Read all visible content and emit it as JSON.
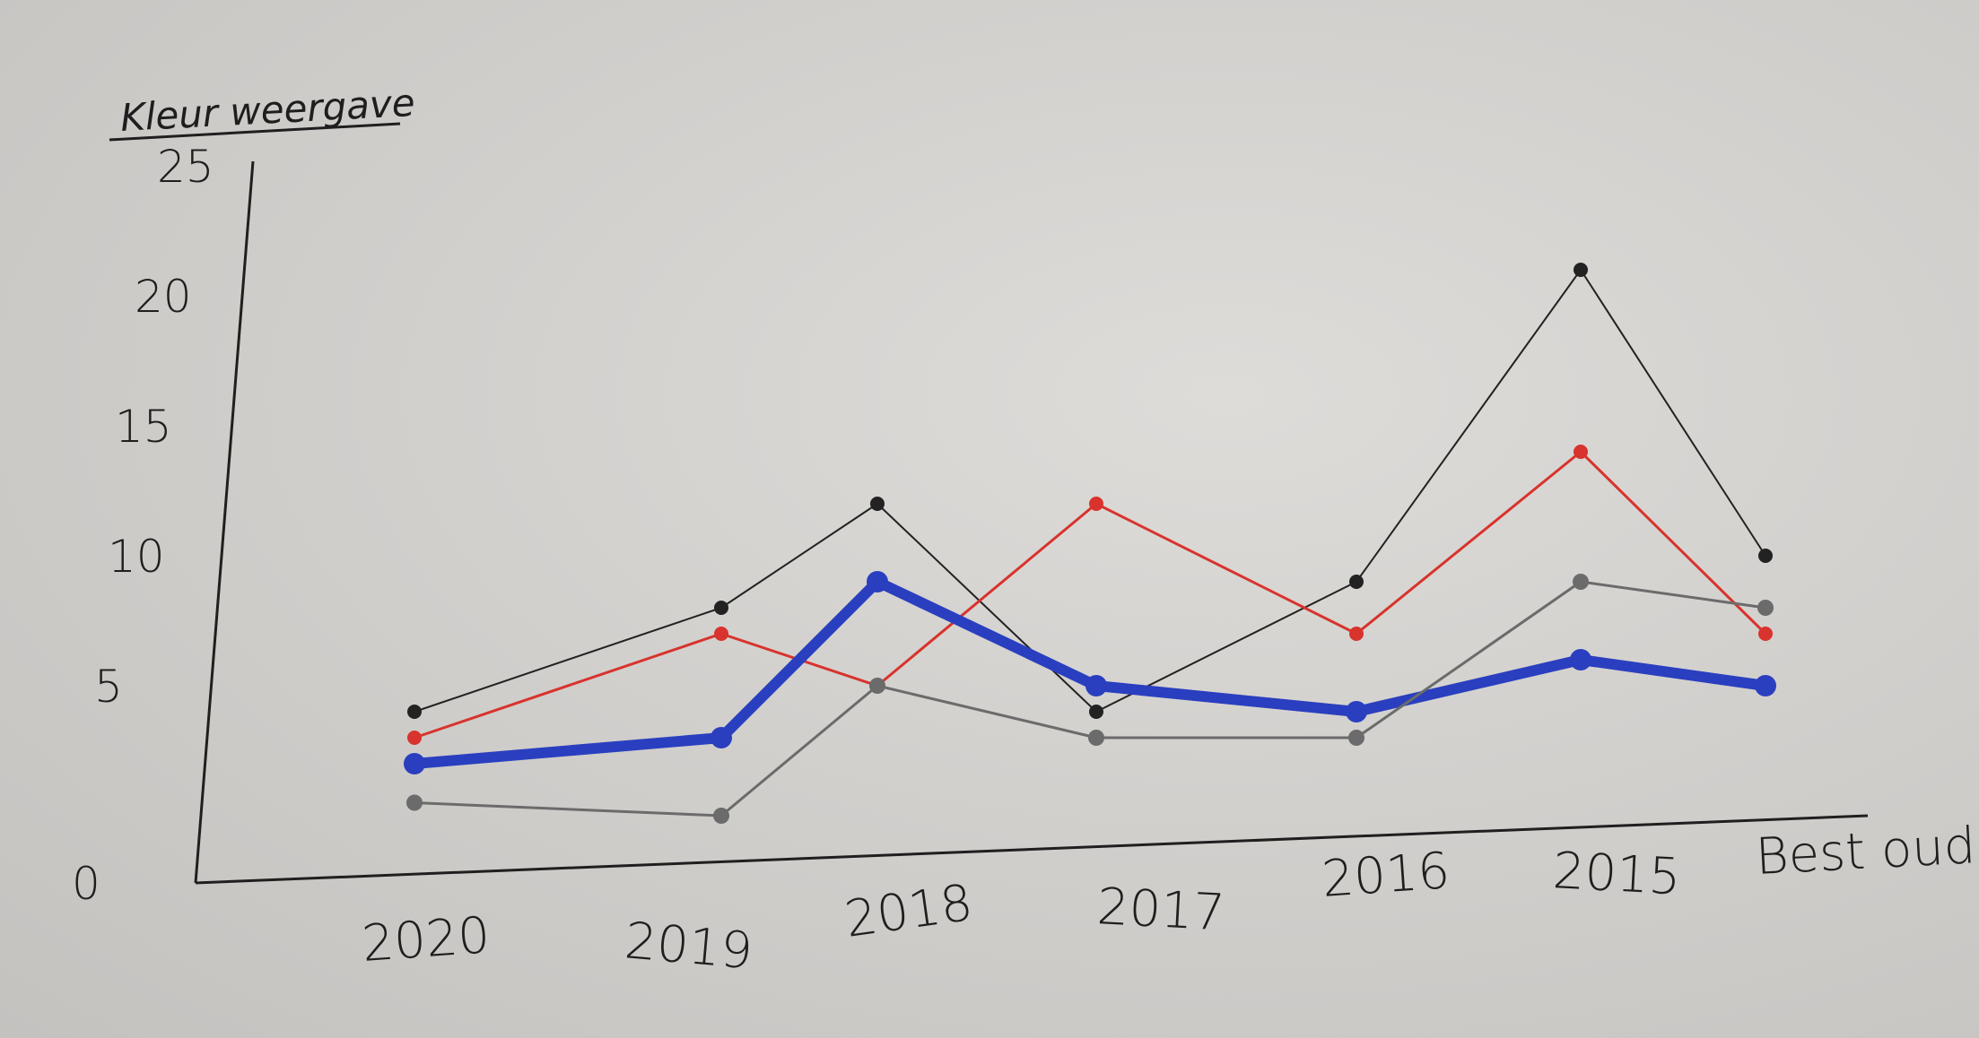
{
  "chart_data": {
    "type": "line",
    "title": "",
    "ylabel": "Kleur weergave",
    "xlabel": "",
    "ylim": [
      0,
      25
    ],
    "yticks": [
      "0",
      "5",
      "10",
      "15",
      "20",
      "25"
    ],
    "categories": [
      "2020",
      "2019",
      "2018",
      "2017",
      "2016",
      "2015",
      "Best oud"
    ],
    "grid": false,
    "legend": "none",
    "series": [
      {
        "color": "#222222",
        "values": [
          4,
          8,
          12,
          4,
          9,
          21,
          10
        ]
      },
      {
        "color": "#d8332d",
        "values": [
          3,
          7,
          5,
          12,
          7,
          14,
          7
        ]
      },
      {
        "color": "#2a3fbf",
        "values": [
          2,
          3,
          9,
          5,
          4,
          6,
          5
        ]
      },
      {
        "color": "#6b6b6b",
        "values": [
          0.5,
          0,
          5,
          3,
          3,
          9,
          8
        ]
      }
    ]
  }
}
